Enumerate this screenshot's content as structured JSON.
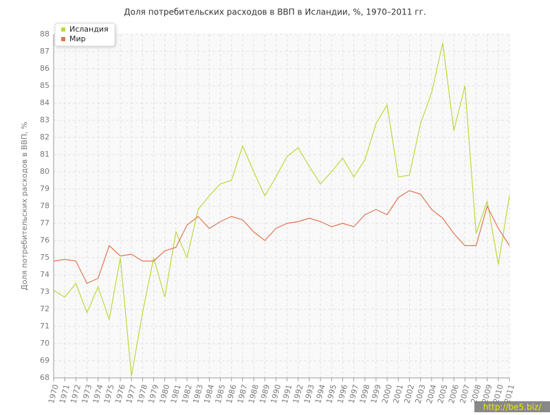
{
  "chart_data": {
    "type": "line",
    "title": "Доля потребительских расходов в ВВП в Исландии, %, 1970–2011 гг.",
    "y_label": "Доля потребительских расходов в ВВП, %",
    "watermark": "http://be5.biz/",
    "x": [
      1970,
      1971,
      1972,
      1973,
      1974,
      1975,
      1976,
      1977,
      1978,
      1979,
      1980,
      1981,
      1982,
      1983,
      1984,
      1985,
      1986,
      1987,
      1988,
      1989,
      1990,
      1991,
      1992,
      1993,
      1994,
      1995,
      1996,
      1997,
      1998,
      1999,
      2000,
      2001,
      2002,
      2003,
      2004,
      2005,
      2006,
      2007,
      2008,
      2009,
      2010,
      2011
    ],
    "series": [
      {
        "name": "Исландия",
        "color": "#bcd83a",
        "values": [
          73.1,
          72.7,
          73.5,
          71.8,
          73.3,
          71.4,
          75.0,
          68.1,
          71.8,
          75.0,
          72.7,
          76.5,
          75.0,
          77.8,
          78.6,
          79.3,
          79.5,
          81.5,
          80.0,
          78.6,
          79.7,
          80.9,
          81.4,
          80.3,
          79.3,
          80.0,
          80.8,
          79.7,
          80.7,
          82.8,
          83.9,
          79.7,
          79.8,
          82.8,
          84.6,
          87.5,
          82.4,
          85.0,
          76.4,
          78.3,
          74.6,
          78.6
        ]
      },
      {
        "name": "Мир",
        "color": "#e0734f",
        "values": [
          74.8,
          74.9,
          74.8,
          73.5,
          73.8,
          75.7,
          75.1,
          75.2,
          74.8,
          74.8,
          75.4,
          75.6,
          76.9,
          77.4,
          76.7,
          77.1,
          77.4,
          77.2,
          76.5,
          76.0,
          76.7,
          77.0,
          77.1,
          77.3,
          77.1,
          76.8,
          77.0,
          76.8,
          77.5,
          77.8,
          77.5,
          78.5,
          78.9,
          78.7,
          77.8,
          77.3,
          76.4,
          75.7,
          75.7,
          78.0,
          76.7,
          75.7
        ]
      }
    ],
    "xlim": [
      1970,
      2011
    ],
    "ylim": [
      68,
      88
    ],
    "yticks": [
      68,
      69,
      70,
      71,
      72,
      73,
      74,
      75,
      76,
      77,
      78,
      79,
      80,
      81,
      82,
      83,
      84,
      85,
      86,
      87,
      88
    ],
    "grid": true
  }
}
